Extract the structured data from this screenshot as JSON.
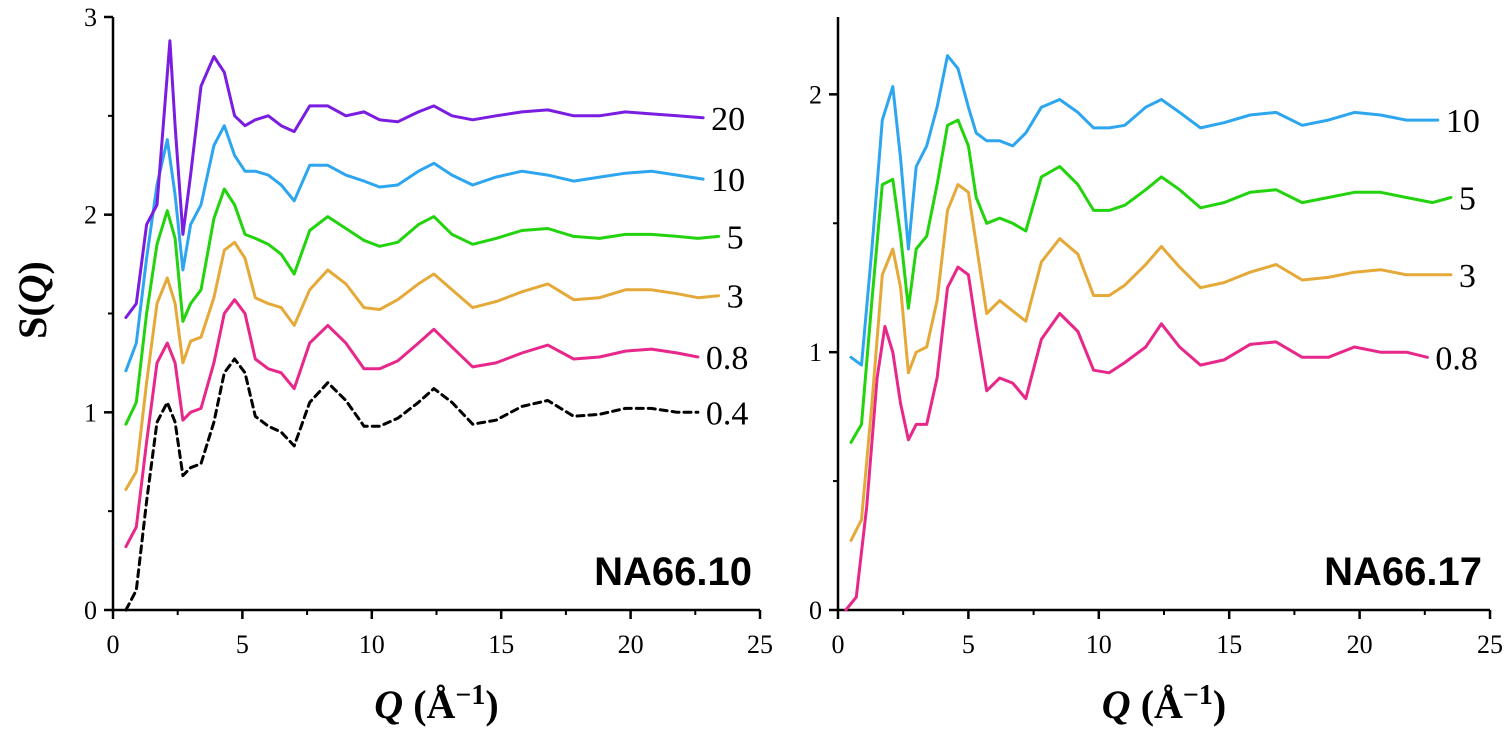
{
  "y_axis_label": {
    "prefix": "S(",
    "var": "Q",
    "suffix": ")"
  },
  "chart_data": [
    {
      "type": "line",
      "title": "NA66.10",
      "xlabel": "Q (Å−1)",
      "ylabel": "S(Q)",
      "xlim": [
        0,
        25
      ],
      "ylim": [
        0,
        3
      ],
      "xticks": [
        "0",
        "5",
        "10",
        "15",
        "20",
        "25"
      ],
      "yticks": [
        "0",
        "1",
        "2",
        "3"
      ],
      "grid": false,
      "series": [
        {
          "name": "0.4",
          "color": "#000000",
          "dashed": true,
          "x": [
            0.5,
            0.9,
            1.3,
            1.7,
            2.1,
            2.4,
            2.7,
            3.0,
            3.4,
            3.9,
            4.3,
            4.7,
            5.1,
            5.5,
            6.0,
            6.5,
            7.0,
            7.6,
            8.3,
            9.0,
            9.7,
            10.3,
            11.0,
            11.8,
            12.4,
            13.1,
            13.9,
            14.8,
            15.8,
            16.8,
            17.8,
            18.8,
            19.8,
            20.8,
            21.8,
            22.6
          ],
          "y": [
            0.0,
            0.1,
            0.55,
            0.95,
            1.05,
            0.95,
            0.68,
            0.72,
            0.74,
            0.95,
            1.2,
            1.27,
            1.2,
            0.98,
            0.93,
            0.9,
            0.83,
            1.05,
            1.15,
            1.06,
            0.93,
            0.93,
            0.97,
            1.05,
            1.12,
            1.05,
            0.94,
            0.96,
            1.03,
            1.06,
            0.98,
            0.99,
            1.02,
            1.02,
            1.0,
            1.0
          ]
        },
        {
          "name": "0.8",
          "color": "#e8278a",
          "dashed": false,
          "x": [
            0.5,
            0.9,
            1.3,
            1.7,
            2.1,
            2.4,
            2.7,
            3.0,
            3.4,
            3.9,
            4.3,
            4.7,
            5.1,
            5.5,
            6.0,
            6.5,
            7.0,
            7.6,
            8.3,
            9.0,
            9.7,
            10.3,
            11.0,
            11.8,
            12.4,
            13.1,
            13.9,
            14.8,
            15.8,
            16.8,
            17.8,
            18.8,
            19.8,
            20.8,
            21.8,
            22.6
          ],
          "y": [
            0.32,
            0.42,
            0.85,
            1.25,
            1.35,
            1.25,
            0.96,
            1.0,
            1.02,
            1.25,
            1.5,
            1.57,
            1.5,
            1.27,
            1.22,
            1.2,
            1.12,
            1.35,
            1.44,
            1.35,
            1.22,
            1.22,
            1.26,
            1.35,
            1.42,
            1.33,
            1.23,
            1.25,
            1.3,
            1.34,
            1.27,
            1.28,
            1.31,
            1.32,
            1.3,
            1.28
          ]
        },
        {
          "name": "3",
          "color": "#e5a93a",
          "dashed": false,
          "x": [
            0.5,
            0.9,
            1.3,
            1.7,
            2.1,
            2.4,
            2.7,
            3.0,
            3.4,
            3.9,
            4.3,
            4.7,
            5.1,
            5.5,
            6.0,
            6.5,
            7.0,
            7.6,
            8.3,
            9.0,
            9.7,
            10.3,
            11.0,
            11.8,
            12.4,
            13.1,
            13.9,
            14.8,
            15.8,
            16.8,
            17.8,
            18.8,
            19.8,
            20.8,
            21.8,
            22.6,
            23.4
          ],
          "y": [
            0.61,
            0.7,
            1.15,
            1.55,
            1.68,
            1.55,
            1.25,
            1.36,
            1.38,
            1.58,
            1.82,
            1.86,
            1.78,
            1.58,
            1.55,
            1.53,
            1.44,
            1.62,
            1.72,
            1.65,
            1.53,
            1.52,
            1.57,
            1.65,
            1.7,
            1.62,
            1.53,
            1.56,
            1.61,
            1.65,
            1.57,
            1.58,
            1.62,
            1.62,
            1.6,
            1.58,
            1.59
          ]
        },
        {
          "name": "5",
          "color": "#22d30e",
          "dashed": false,
          "x": [
            0.5,
            0.9,
            1.3,
            1.7,
            2.1,
            2.4,
            2.7,
            3.0,
            3.4,
            3.9,
            4.3,
            4.7,
            5.1,
            5.5,
            6.0,
            6.5,
            7.0,
            7.6,
            8.3,
            9.0,
            9.7,
            10.3,
            11.0,
            11.8,
            12.4,
            13.1,
            13.9,
            14.8,
            15.8,
            16.8,
            17.8,
            18.8,
            19.8,
            20.8,
            21.8,
            22.6,
            23.4
          ],
          "y": [
            0.94,
            1.05,
            1.5,
            1.85,
            2.02,
            1.88,
            1.46,
            1.55,
            1.62,
            1.98,
            2.13,
            2.05,
            1.9,
            1.88,
            1.85,
            1.8,
            1.7,
            1.92,
            1.99,
            1.93,
            1.87,
            1.84,
            1.86,
            1.95,
            1.99,
            1.9,
            1.85,
            1.88,
            1.92,
            1.93,
            1.89,
            1.88,
            1.9,
            1.9,
            1.89,
            1.88,
            1.89
          ]
        },
        {
          "name": "10",
          "color": "#2ea6ef",
          "dashed": false,
          "x": [
            0.5,
            0.9,
            1.3,
            1.7,
            2.1,
            2.4,
            2.7,
            3.0,
            3.4,
            3.9,
            4.3,
            4.7,
            5.1,
            5.5,
            6.0,
            6.5,
            7.0,
            7.6,
            8.3,
            9.0,
            9.7,
            10.3,
            11.0,
            11.8,
            12.4,
            13.1,
            13.9,
            14.8,
            15.8,
            16.8,
            17.8,
            18.8,
            19.8,
            20.8,
            21.8,
            22.8
          ],
          "y": [
            1.21,
            1.35,
            1.78,
            2.15,
            2.38,
            2.1,
            1.72,
            1.95,
            2.05,
            2.35,
            2.45,
            2.3,
            2.22,
            2.22,
            2.2,
            2.15,
            2.07,
            2.25,
            2.25,
            2.2,
            2.17,
            2.14,
            2.15,
            2.22,
            2.26,
            2.2,
            2.15,
            2.19,
            2.22,
            2.2,
            2.17,
            2.19,
            2.21,
            2.22,
            2.2,
            2.18
          ]
        },
        {
          "name": "20",
          "color": "#7a1de0",
          "dashed": false,
          "x": [
            0.5,
            0.9,
            1.3,
            1.7,
            2.0,
            2.2,
            2.4,
            2.7,
            3.0,
            3.4,
            3.9,
            4.3,
            4.7,
            5.1,
            5.5,
            6.0,
            6.5,
            7.0,
            7.6,
            8.3,
            9.0,
            9.7,
            10.3,
            11.0,
            11.8,
            12.4,
            13.1,
            13.9,
            14.8,
            15.8,
            16.8,
            17.8,
            18.8,
            19.8,
            20.8,
            21.8,
            22.8
          ],
          "y": [
            1.48,
            1.55,
            1.95,
            2.05,
            2.55,
            2.88,
            2.45,
            1.9,
            2.2,
            2.65,
            2.8,
            2.72,
            2.5,
            2.45,
            2.48,
            2.5,
            2.45,
            2.42,
            2.55,
            2.55,
            2.5,
            2.52,
            2.48,
            2.47,
            2.52,
            2.55,
            2.5,
            2.48,
            2.5,
            2.52,
            2.53,
            2.5,
            2.5,
            2.52,
            2.51,
            2.5,
            2.49
          ]
        }
      ]
    },
    {
      "type": "line",
      "title": "NA66.17",
      "xlabel": "Q (Å−1)",
      "ylabel": "",
      "xlim": [
        0,
        25
      ],
      "ylim": [
        0,
        2.3
      ],
      "xticks": [
        "0",
        "5",
        "10",
        "15",
        "20",
        "25"
      ],
      "yticks": [
        "0",
        "1",
        "2"
      ],
      "grid": false,
      "series": [
        {
          "name": "0.8",
          "color": "#e8278a",
          "dashed": false,
          "x": [
            0.3,
            0.7,
            1.1,
            1.5,
            1.8,
            2.1,
            2.4,
            2.7,
            3.0,
            3.4,
            3.8,
            4.2,
            4.6,
            5.0,
            5.3,
            5.7,
            6.2,
            6.7,
            7.2,
            7.8,
            8.5,
            9.2,
            9.8,
            10.4,
            11.0,
            11.8,
            12.4,
            13.1,
            13.9,
            14.8,
            15.8,
            16.8,
            17.8,
            18.8,
            19.8,
            20.8,
            21.8,
            22.6
          ],
          "y": [
            0.0,
            0.05,
            0.4,
            0.9,
            1.1,
            1.0,
            0.8,
            0.66,
            0.72,
            0.72,
            0.9,
            1.25,
            1.33,
            1.3,
            1.1,
            0.85,
            0.9,
            0.88,
            0.82,
            1.05,
            1.15,
            1.08,
            0.93,
            0.92,
            0.96,
            1.02,
            1.11,
            1.02,
            0.95,
            0.97,
            1.03,
            1.04,
            0.98,
            0.98,
            1.02,
            1.0,
            1.0,
            0.98
          ]
        },
        {
          "name": "3",
          "color": "#e5a93a",
          "dashed": false,
          "x": [
            0.5,
            0.9,
            1.3,
            1.7,
            2.1,
            2.4,
            2.7,
            3.0,
            3.4,
            3.8,
            4.2,
            4.6,
            5.0,
            5.3,
            5.7,
            6.2,
            6.7,
            7.2,
            7.8,
            8.5,
            9.2,
            9.8,
            10.4,
            11.0,
            11.8,
            12.4,
            13.1,
            13.9,
            14.8,
            15.8,
            16.8,
            17.8,
            18.8,
            19.8,
            20.8,
            21.8,
            22.8,
            23.5
          ],
          "y": [
            0.27,
            0.35,
            0.8,
            1.3,
            1.4,
            1.25,
            0.92,
            1.0,
            1.02,
            1.2,
            1.55,
            1.65,
            1.62,
            1.42,
            1.15,
            1.2,
            1.16,
            1.12,
            1.35,
            1.44,
            1.38,
            1.22,
            1.22,
            1.26,
            1.34,
            1.41,
            1.33,
            1.25,
            1.27,
            1.31,
            1.34,
            1.28,
            1.29,
            1.31,
            1.32,
            1.3,
            1.3,
            1.3
          ]
        },
        {
          "name": "5",
          "color": "#22d30e",
          "dashed": false,
          "x": [
            0.5,
            0.9,
            1.3,
            1.7,
            2.1,
            2.4,
            2.7,
            3.0,
            3.4,
            3.8,
            4.2,
            4.6,
            5.0,
            5.3,
            5.7,
            6.2,
            6.7,
            7.2,
            7.8,
            8.5,
            9.2,
            9.8,
            10.4,
            11.0,
            11.8,
            12.4,
            13.1,
            13.9,
            14.8,
            15.8,
            16.8,
            17.8,
            18.8,
            19.8,
            20.8,
            21.8,
            22.8,
            23.5
          ],
          "y": [
            0.65,
            0.72,
            1.2,
            1.65,
            1.67,
            1.45,
            1.17,
            1.4,
            1.45,
            1.65,
            1.88,
            1.9,
            1.8,
            1.6,
            1.5,
            1.52,
            1.5,
            1.47,
            1.68,
            1.72,
            1.65,
            1.55,
            1.55,
            1.57,
            1.63,
            1.68,
            1.63,
            1.56,
            1.58,
            1.62,
            1.63,
            1.58,
            1.6,
            1.62,
            1.62,
            1.6,
            1.58,
            1.6
          ]
        },
        {
          "name": "10",
          "color": "#2ea6ef",
          "dashed": false,
          "x": [
            0.5,
            0.9,
            1.3,
            1.7,
            2.1,
            2.4,
            2.7,
            3.0,
            3.4,
            3.8,
            4.2,
            4.6,
            5.0,
            5.3,
            5.7,
            6.2,
            6.7,
            7.2,
            7.8,
            8.5,
            9.2,
            9.8,
            10.4,
            11.0,
            11.8,
            12.4,
            13.1,
            13.9,
            14.8,
            15.8,
            16.8,
            17.8,
            18.8,
            19.8,
            20.8,
            21.8,
            23.0
          ],
          "y": [
            0.98,
            0.95,
            1.4,
            1.9,
            2.03,
            1.75,
            1.4,
            1.72,
            1.8,
            1.95,
            2.15,
            2.1,
            1.95,
            1.85,
            1.82,
            1.82,
            1.8,
            1.85,
            1.95,
            1.98,
            1.93,
            1.87,
            1.87,
            1.88,
            1.95,
            1.98,
            1.93,
            1.87,
            1.89,
            1.92,
            1.93,
            1.88,
            1.9,
            1.93,
            1.92,
            1.9,
            1.9
          ]
        }
      ]
    }
  ]
}
